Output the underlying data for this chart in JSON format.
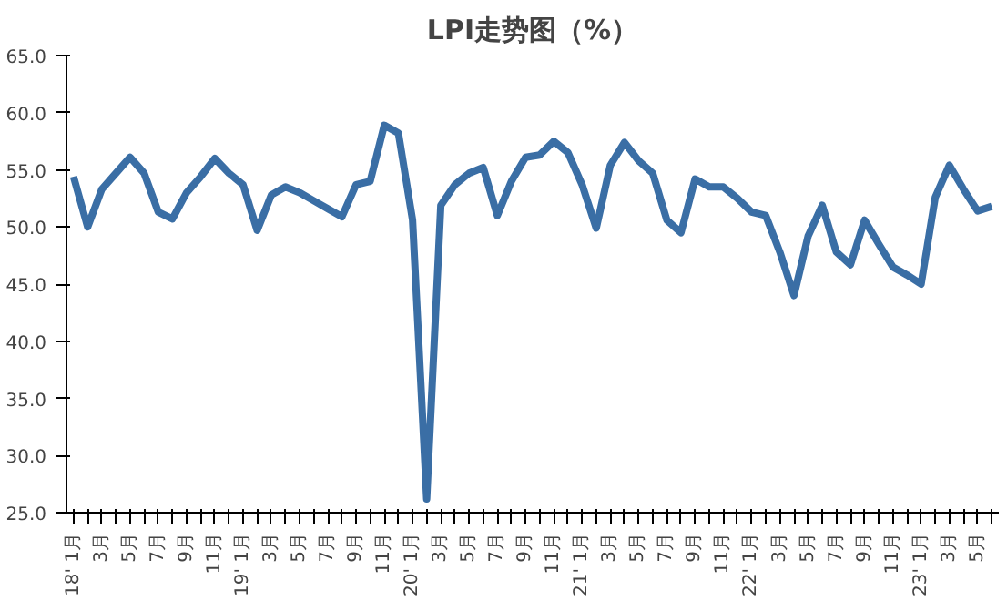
{
  "chart_data": {
    "type": "line",
    "title": "LPI走势图（%）",
    "categories": [
      "18' 1月",
      null,
      "3月",
      null,
      "5月",
      null,
      "7月",
      null,
      "9月",
      null,
      "11月",
      null,
      "19' 1月",
      null,
      "3月",
      null,
      "5月",
      null,
      "7月",
      null,
      "9月",
      null,
      "11月",
      null,
      "20' 1月",
      null,
      "3月",
      null,
      "5月",
      null,
      "7月",
      null,
      "9月",
      null,
      "11月",
      null,
      "21' 1月",
      null,
      "3月",
      null,
      "5月",
      null,
      "7月",
      null,
      "9月",
      null,
      "11月",
      null,
      "22' 1月",
      null,
      "3月",
      null,
      "5月",
      null,
      "7月",
      null,
      "9月",
      null,
      "11月",
      null,
      "23' 1月",
      null,
      "3月",
      null,
      "5月",
      null
    ],
    "series": [
      {
        "color": "#3a6ea5",
        "values": [
          54.4,
          50.0,
          53.3,
          54.7,
          56.1,
          54.7,
          51.3,
          50.7,
          53.0,
          54.4,
          56.0,
          54.7,
          53.7,
          49.7,
          52.8,
          53.5,
          53.0,
          52.3,
          51.6,
          50.9,
          53.7,
          54.0,
          58.9,
          58.2,
          50.6,
          26.2,
          51.9,
          53.7,
          54.7,
          55.2,
          51.0,
          54.0,
          56.1,
          56.3,
          57.5,
          56.5,
          53.7,
          49.9,
          55.4,
          57.4,
          55.8,
          54.7,
          50.6,
          49.5,
          54.2,
          53.5,
          53.5,
          52.5,
          51.3,
          51.0,
          47.8,
          44.0,
          49.2,
          51.9,
          47.8,
          46.7,
          50.6,
          48.5,
          46.5,
          45.8,
          45.0,
          52.6,
          55.4,
          53.3,
          51.4,
          51.8
        ]
      }
    ],
    "ylim": [
      25,
      65
    ],
    "yticks": [
      {
        "value": 25,
        "label": "25.0"
      },
      {
        "value": 30,
        "label": "30.0"
      },
      {
        "value": 35,
        "label": "35.0"
      },
      {
        "value": 40,
        "label": "40.0"
      },
      {
        "value": 45,
        "label": "45.0"
      },
      {
        "value": 50,
        "label": "50.0"
      },
      {
        "value": 55,
        "label": "55.0"
      },
      {
        "value": 60,
        "label": "60.0"
      },
      {
        "value": 65,
        "label": "65.0"
      }
    ],
    "grid": false
  }
}
